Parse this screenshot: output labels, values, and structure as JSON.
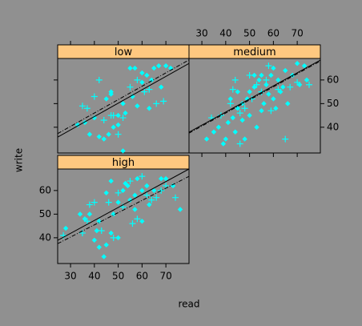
{
  "axes": {
    "xlabel": "read",
    "ylabel": "write"
  },
  "chart_data": [
    {
      "type": "scatter",
      "title": "low",
      "xlim": [
        24.6,
        79.7
      ],
      "ylim": [
        29.1,
        69.1
      ],
      "xticks": [
        30,
        40,
        50,
        60,
        70
      ],
      "yticks": [
        40,
        50,
        60
      ],
      "strip_color": "#ffc880",
      "series": [
        {
          "marker": "diamond",
          "color": "#00ffff",
          "x": [
            42,
            44,
            46,
            48,
            50,
            52,
            55,
            57,
            60,
            62,
            65,
            67,
            68,
            45,
            47,
            50,
            53,
            56,
            58,
            63,
            70,
            72,
            40,
            38,
            36,
            33,
            52,
            60,
            64,
            47
          ],
          "values": [
            36,
            35,
            37,
            40,
            45,
            50,
            65,
            65,
            63,
            62,
            65,
            66,
            57,
            52,
            55,
            41,
            46,
            53,
            49,
            48,
            66,
            65,
            44,
            37,
            42,
            41,
            30,
            59,
            60,
            54
          ]
        },
        {
          "marker": "plus",
          "color": "#00ffff",
          "x": [
            35,
            37,
            44,
            47,
            52,
            55,
            58,
            61,
            66,
            69,
            50,
            48,
            42,
            63,
            40
          ],
          "values": [
            49,
            48,
            43,
            45,
            44,
            57,
            60,
            55,
            50,
            51,
            37,
            45,
            60,
            56,
            53
          ]
        }
      ],
      "lines": [
        {
          "style": "solid",
          "color": "#000000",
          "x": [
            24.6,
            79.7
          ],
          "values": [
            35.8,
            67
          ]
        },
        {
          "style": "dash",
          "color": "#000000",
          "x": [
            24.6,
            79.7
          ],
          "values": [
            37.3,
            68.5
          ]
        }
      ]
    },
    {
      "type": "scatter",
      "title": "medium",
      "xlim": [
        24.6,
        79.7
      ],
      "ylim": [
        29.1,
        69.1
      ],
      "xticks": [
        30,
        40,
        50,
        60,
        70
      ],
      "yticks": [
        40,
        50,
        60
      ],
      "strip_color": "#ffc880",
      "series": [
        {
          "marker": "diamond",
          "color": "#00ffff",
          "x": [
            32,
            35,
            37,
            39,
            41,
            43,
            45,
            47,
            49,
            50,
            52,
            54,
            55,
            57,
            59,
            60,
            62,
            63,
            65,
            68,
            70,
            73,
            74,
            45,
            48,
            50,
            53,
            56,
            58,
            61,
            44,
            40,
            52,
            64,
            66,
            55,
            47,
            42,
            60,
            71
          ],
          "values": [
            35,
            38,
            40,
            33,
            42,
            44,
            48,
            50,
            52,
            55,
            57,
            60,
            62,
            58,
            62,
            65,
            60,
            55,
            64,
            62,
            67,
            66,
            60,
            55,
            35,
            45,
            40,
            50,
            54,
            48,
            38,
            35,
            62,
            57,
            50,
            47,
            43,
            52,
            52,
            58
          ]
        },
        {
          "marker": "plus",
          "color": "#00ffff",
          "x": [
            34,
            38,
            42,
            44,
            46,
            48,
            50,
            51,
            53,
            55,
            57,
            59,
            62,
            65,
            67,
            70,
            75,
            46,
            43,
            58
          ],
          "values": [
            44,
            45,
            50,
            60,
            46,
            48,
            62,
            52,
            58,
            55,
            60,
            47,
            56,
            35,
            57,
            59,
            58,
            33,
            56,
            66
          ]
        }
      ],
      "lines": [
        {
          "style": "solid",
          "color": "#000000",
          "x": [
            24.6,
            79.7
          ],
          "values": [
            37.9,
            68.4
          ]
        },
        {
          "style": "dash",
          "color": "#000000",
          "x": [
            24.6,
            79.7
          ],
          "values": [
            37.5,
            68.0
          ]
        }
      ]
    },
    {
      "type": "scatter",
      "title": "high",
      "xlim": [
        24.6,
        79.7
      ],
      "ylim": [
        29.1,
        69.1
      ],
      "xticks": [
        30,
        40,
        50,
        60,
        70
      ],
      "yticks": [
        40,
        50,
        60
      ],
      "strip_color": "#ffc880",
      "series": [
        {
          "marker": "diamond",
          "color": "#00ffff",
          "x": [
            28,
            34,
            36,
            38,
            40,
            41,
            42,
            44,
            45,
            47,
            48,
            50,
            52,
            54,
            55,
            57,
            58,
            60,
            62,
            63,
            65,
            68,
            70,
            73,
            76,
            45,
            50,
            53,
            60,
            42,
            47,
            57
          ],
          "values": [
            44,
            50,
            48,
            50,
            39,
            43,
            36,
            32,
            37,
            42,
            50,
            55,
            60,
            62,
            56,
            58,
            65,
            60,
            62,
            54,
            60,
            65,
            65,
            62,
            52,
            59,
            40,
            63,
            47,
            47,
            64,
            52
          ]
        },
        {
          "marker": "plus",
          "color": "#00ffff",
          "x": [
            27,
            35,
            38,
            40,
            43,
            46,
            48,
            50,
            52,
            55,
            58,
            60,
            62,
            64,
            66,
            68,
            70,
            74,
            37,
            56
          ],
          "values": [
            41,
            42,
            54,
            55,
            43,
            55,
            40,
            59,
            53,
            64,
            48,
            66,
            58,
            56,
            57,
            60,
            62,
            57,
            47,
            46
          ]
        }
      ],
      "lines": [
        {
          "style": "solid",
          "color": "#000000",
          "x": [
            24.6,
            79.7
          ],
          "values": [
            38.9,
            69.1
          ]
        },
        {
          "style": "dash",
          "color": "#000000",
          "x": [
            24.6,
            79.7
          ],
          "values": [
            37.5,
            66.0
          ]
        }
      ]
    }
  ]
}
